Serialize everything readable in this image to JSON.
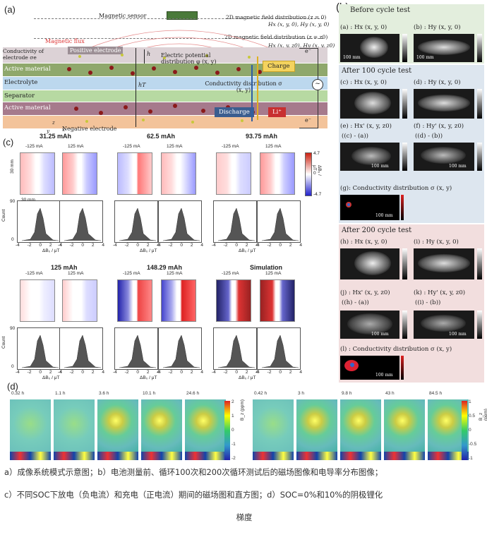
{
  "panel_a": {
    "label": "(a)",
    "magnetic_sensor": "Magnetic sensor",
    "field_z0": "2D magnetic field distribution  (z = 0)",
    "field_z0_eq": "Hx (x, y, 0), Hy (x, y, 0)",
    "field_zz0": "2D magnetic field distribution  (z = z0)",
    "field_zz0_eq": "Hx (x, y, z0), Hy (x, y, z0)",
    "magnetic_flux": "Magnetic flux",
    "conductivity_electrode": "Conductivity of electrode σe",
    "positive_electrode": "Positive electrode",
    "potential": "Electric potential distribution φ (x, y)",
    "active_material": "Active material",
    "electrolyte": "Electrolyte",
    "separator": "Separator",
    "negative_electrode": "Negative electrode",
    "conductivity_distribution": "Conductivity distribution σ (x, y)",
    "charge": "Charge",
    "discharge": "Discharge",
    "li": "Li⁺",
    "e1": "e⁻",
    "e2": "e⁻",
    "hT": "hT",
    "h": "h",
    "axis_z": "z",
    "axis_x": "x",
    "axis_y": "y"
  },
  "panel_b": {
    "label": "(b)",
    "before": "Before cycle test",
    "a_label": "(a) : Hx (x, y, 0)",
    "b_label": "(b) : Hy (x, y, 0)",
    "after100": "After 100 cycle test",
    "c_label": "(c) : Hx (x, y, 0)",
    "d_label": "(d) : Hy (x, y, 0)",
    "e_label": "(e) : Hx' (x, y, z0)",
    "f_label": "(f) : Hy' (x, y, z0)",
    "e_sub": "((c) - (a))",
    "f_sub": "((d) - (b))",
    "g_label": "(g): Conductivity distribution σ (x, y)",
    "after200": "After 200 cycle test",
    "h_label": "(h) : Hx (x, y, 0)",
    "i_label": "(i) : Hy (x, y, 0)",
    "j_label": "(j) : Hx' (x, y, z0)",
    "k_label": "(k) : Hy' (x, y, z0)",
    "j_sub": "((h) - (a))",
    "k_sub": "((i) - (b))",
    "l_label": "(l) : Conductivity distribution σ (x, y)",
    "scale": "100 mm"
  },
  "panel_c": {
    "label": "(c)",
    "top_titles": [
      "31.25 mAh",
      "62.5 mAh",
      "93.75 mAh"
    ],
    "bottom_titles": [
      "125 mAh",
      "148.29 mAh",
      "Simulation"
    ],
    "neg": "-125 mA",
    "pos": "125 mA",
    "count": "Count",
    "count_max": "90",
    "count_zero": "0",
    "xlabel": "ΔB₀ / μT",
    "ticks": [
      "-4",
      "-2",
      "0",
      "2",
      "4"
    ],
    "cbar_max": "4.7",
    "cbar_zero": "0",
    "cbar_min": "-4.7",
    "cbar_label": "ΔB₀ / μT",
    "dim_v": "30 mm",
    "dim_h": "30 mm"
  },
  "panel_d": {
    "label": "(d)",
    "left_times": [
      "0.32 h",
      "1.1 h",
      "3.6 h",
      "10.1 h",
      "24.6 h"
    ],
    "right_times": [
      "0.42 h",
      "3 h",
      "9.8 h",
      "43 h",
      "84.5 h"
    ],
    "left_cbar": [
      "2",
      "1",
      "0",
      "-1",
      "-2"
    ],
    "right_cbar": [
      "1",
      "0.5",
      "0",
      "-0.5",
      "-1"
    ],
    "cbar_label": "B_z (ppm)"
  },
  "caption": {
    "line1": "a）成像系统模式示意图；b）电池测量前、循环100次和200次循环测试后的磁场图像和电导率分布图像；",
    "line2": "c）不同SOC下放电（负电流）和充电（正电流）期间的磁场图和直方图；d）SOC=0%和10%的阴极锂化",
    "line3": "梯度"
  },
  "colors": {
    "active_material": "#8fa86c",
    "electrolyte": "#bcd8ee",
    "separator": "#b7d9a2",
    "negative": "#f3c39a",
    "positive": "#d7c5d0",
    "lower_active": "#a67a8c",
    "panel_b_bg1": "#e3eedd",
    "panel_b_bg2": "#dde6ef",
    "panel_b_bg3": "#f2dede"
  }
}
